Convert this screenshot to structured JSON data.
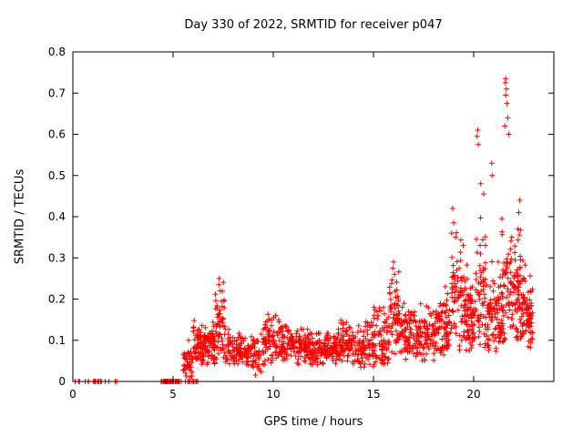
{
  "chart_data": {
    "type": "scatter",
    "title": "Day 330 of 2022, SRMTID for receiver p047",
    "xlabel": "GPS time / hours",
    "ylabel": "SRMTID / TECUs",
    "xlim": [
      0,
      24
    ],
    "ylim": [
      0,
      0.8
    ],
    "xticks": [
      {
        "v": 0,
        "label": "0"
      },
      {
        "v": 5,
        "label": "5"
      },
      {
        "v": 10,
        "label": "10"
      },
      {
        "v": 15,
        "label": "15"
      },
      {
        "v": 20,
        "label": "20"
      }
    ],
    "yticks": [
      {
        "v": 0.0,
        "label": "0"
      },
      {
        "v": 0.1,
        "label": "0.1"
      },
      {
        "v": 0.2,
        "label": "0.2"
      },
      {
        "v": 0.3,
        "label": "0.3"
      },
      {
        "v": 0.4,
        "label": "0.4"
      },
      {
        "v": 0.5,
        "label": "0.5"
      },
      {
        "v": 0.6,
        "label": "0.6"
      },
      {
        "v": 0.7,
        "label": "0.7"
      },
      {
        "v": 0.8,
        "label": "0.8"
      }
    ],
    "grid": false,
    "legend": "none",
    "marker": {
      "shape": "plus",
      "color": "#ff0000",
      "size": 3
    },
    "axis_color": "#000000",
    "series": [
      {
        "name": "SRMTID",
        "cluster_format": [
          "x_start_h",
          "x_end_h",
          "count",
          "y_mean",
          "y_sd",
          "y_min",
          "y_max"
        ],
        "clusters": [
          [
            0.05,
            0.4,
            4,
            0,
            0,
            0,
            0
          ],
          [
            0.5,
            1.9,
            16,
            0,
            0,
            0,
            0
          ],
          [
            2.05,
            2.35,
            3,
            0,
            0,
            0,
            0
          ],
          [
            4.4,
            5.45,
            48,
            0,
            0,
            0,
            0
          ],
          [
            5.5,
            6.35,
            12,
            0,
            0,
            0,
            0
          ],
          [
            5.5,
            6.0,
            40,
            0.05,
            0.025,
            0.01,
            0.11
          ],
          [
            6.0,
            6.6,
            70,
            0.085,
            0.03,
            0.03,
            0.17
          ],
          [
            6.6,
            7.1,
            60,
            0.09,
            0.025,
            0.04,
            0.15
          ],
          [
            7.1,
            7.6,
            55,
            0.13,
            0.05,
            0.05,
            0.25
          ],
          [
            7.6,
            8.4,
            65,
            0.08,
            0.02,
            0.04,
            0.13
          ],
          [
            8.4,
            9.3,
            70,
            0.075,
            0.02,
            0.03,
            0.12
          ],
          [
            9.0,
            9.4,
            8,
            0.03,
            0.012,
            0.015,
            0.05
          ],
          [
            9.4,
            10.3,
            75,
            0.1,
            0.03,
            0.04,
            0.17
          ],
          [
            10.3,
            11.2,
            85,
            0.09,
            0.022,
            0.04,
            0.14
          ],
          [
            11.2,
            12.2,
            95,
            0.082,
            0.02,
            0.04,
            0.13
          ],
          [
            12.2,
            13.2,
            95,
            0.08,
            0.02,
            0.04,
            0.13
          ],
          [
            13.2,
            14.2,
            85,
            0.09,
            0.024,
            0.04,
            0.15
          ],
          [
            14.2,
            15.0,
            80,
            0.085,
            0.03,
            0.03,
            0.16
          ],
          [
            15.0,
            15.8,
            75,
            0.1,
            0.04,
            0.04,
            0.2
          ],
          [
            15.8,
            16.3,
            55,
            0.15,
            0.055,
            0.06,
            0.29
          ],
          [
            16.3,
            17.1,
            75,
            0.11,
            0.035,
            0.05,
            0.21
          ],
          [
            17.1,
            18.1,
            95,
            0.11,
            0.03,
            0.05,
            0.19
          ],
          [
            18.1,
            18.9,
            85,
            0.13,
            0.045,
            0.06,
            0.25
          ],
          [
            18.9,
            19.5,
            65,
            0.19,
            0.07,
            0.07,
            0.4
          ],
          [
            19.5,
            20.1,
            85,
            0.16,
            0.055,
            0.07,
            0.33
          ],
          [
            20.1,
            20.7,
            65,
            0.21,
            0.09,
            0.08,
            0.52
          ],
          [
            20.7,
            21.4,
            85,
            0.16,
            0.055,
            0.07,
            0.36
          ],
          [
            21.4,
            22.1,
            85,
            0.2,
            0.08,
            0.08,
            0.55
          ],
          [
            22.1,
            22.6,
            75,
            0.2,
            0.065,
            0.09,
            0.4
          ],
          [
            22.6,
            22.95,
            55,
            0.15,
            0.04,
            0.08,
            0.27
          ]
        ],
        "points": [
          [
            7.3,
            0.25
          ],
          [
            7.28,
            0.235
          ],
          [
            7.35,
            0.22
          ],
          [
            16.0,
            0.29
          ],
          [
            15.97,
            0.275
          ],
          [
            16.05,
            0.26
          ],
          [
            18.95,
            0.42
          ],
          [
            19.0,
            0.385
          ],
          [
            18.9,
            0.36
          ],
          [
            19.1,
            0.35
          ],
          [
            20.2,
            0.61
          ],
          [
            20.17,
            0.595
          ],
          [
            20.23,
            0.575
          ],
          [
            20.35,
            0.48
          ],
          [
            20.5,
            0.455
          ],
          [
            20.9,
            0.53
          ],
          [
            20.92,
            0.5
          ],
          [
            21.6,
            0.735
          ],
          [
            21.58,
            0.725
          ],
          [
            21.63,
            0.71
          ],
          [
            21.6,
            0.695
          ],
          [
            21.66,
            0.675
          ],
          [
            21.7,
            0.64
          ],
          [
            21.55,
            0.62
          ],
          [
            21.75,
            0.6
          ],
          [
            22.3,
            0.44
          ],
          [
            22.25,
            0.41
          ],
          [
            22.2,
            0.37
          ],
          [
            21.9,
            0.35
          ]
        ]
      }
    ]
  }
}
